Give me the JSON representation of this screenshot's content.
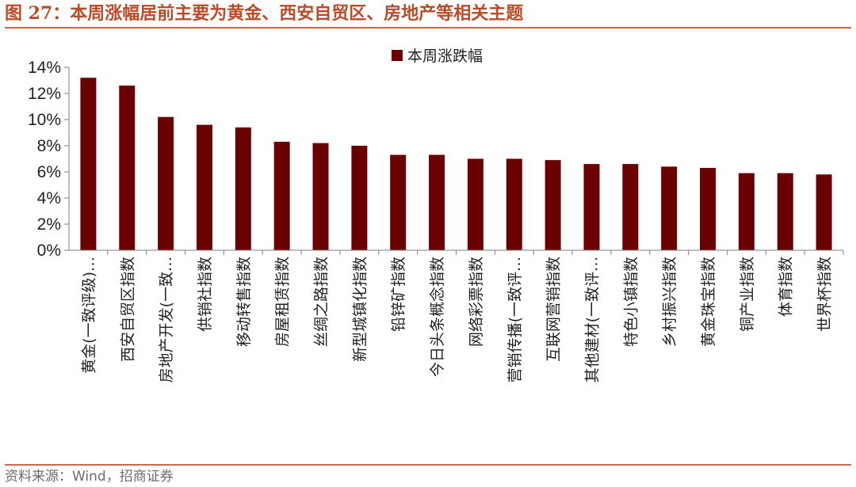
{
  "header": {
    "title": "图 27：本周涨幅居前主要为黄金、西安自贸区、房地产等相关主题"
  },
  "footer": {
    "source": "资料来源：Wind，招商证券"
  },
  "colors": {
    "bar": "#6b0000",
    "axis": "#808080",
    "title": "#b84b28"
  },
  "chart_data": {
    "type": "bar",
    "title": "",
    "xlabel": "",
    "ylabel": "",
    "legend": "top-center",
    "grid": false,
    "ylim": [
      0,
      14
    ],
    "y_ticks": [
      0,
      2,
      4,
      6,
      8,
      10,
      12,
      14
    ],
    "y_tick_labels": [
      "0%",
      "2%",
      "4%",
      "6%",
      "8%",
      "10%",
      "12%",
      "14%"
    ],
    "categories": [
      "黄金(一致评级)…",
      "西安自贸区指数",
      "房地产开发(一致…",
      "供销社指数",
      "移动转售指数",
      "房屋租赁指数",
      "丝绸之路指数",
      "新型城镇化指数",
      "铅锌矿指数",
      "今日头条概念指数",
      "网络彩票指数",
      "营销传播(一致评…",
      "互联网营销指数",
      "其他建材(一致评…",
      "特色小镇指数",
      "乡村振兴指数",
      "黄金珠宝指数",
      "铜产业指数",
      "体育指数",
      "世界杯指数"
    ],
    "series": [
      {
        "name": "本周涨跌幅",
        "values": [
          13.2,
          12.6,
          10.2,
          9.6,
          9.4,
          8.3,
          8.2,
          8.0,
          7.3,
          7.3,
          7.0,
          7.0,
          6.9,
          6.6,
          6.6,
          6.4,
          6.3,
          5.9,
          5.9,
          5.8
        ]
      }
    ]
  }
}
